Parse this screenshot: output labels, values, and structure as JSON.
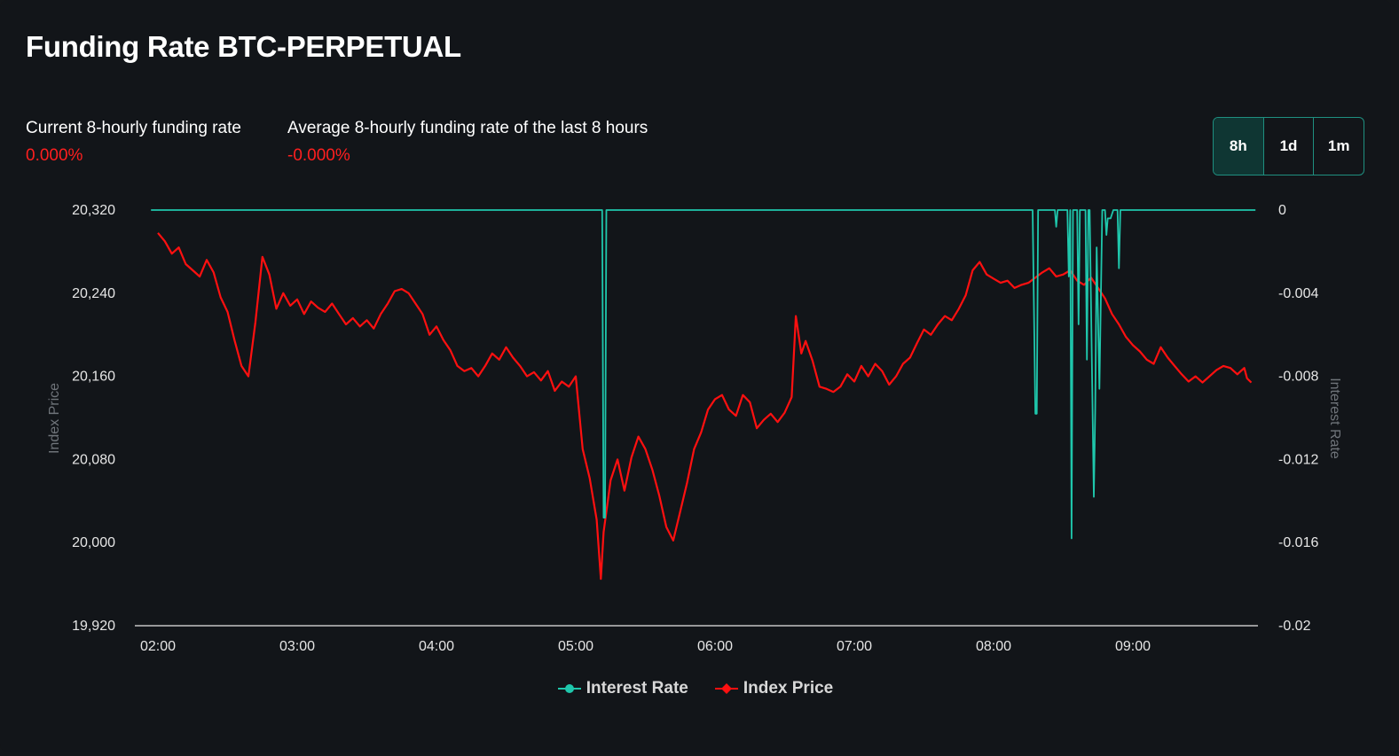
{
  "title": "Funding Rate BTC-PERPETUAL",
  "stats": [
    {
      "label": "Current 8-hourly funding rate",
      "value": "0.000%"
    },
    {
      "label": "Average 8-hourly funding rate of the last 8 hours",
      "value": "-0.000%"
    }
  ],
  "ranges": [
    {
      "label": "8h",
      "active": true
    },
    {
      "label": "1d",
      "active": false
    },
    {
      "label": "1m",
      "active": false
    }
  ],
  "legend": {
    "interest_label": "Interest Rate",
    "index_label": "Index Price"
  },
  "colors": {
    "interest": "#1fc7ac",
    "index": "#ff1010",
    "background": "#121519"
  },
  "chart_data": {
    "type": "line",
    "xlabel": "",
    "x_ticks": [
      "02:00",
      "03:00",
      "04:00",
      "05:00",
      "06:00",
      "07:00",
      "08:00",
      "09:00"
    ],
    "x_range_hours": [
      1.95,
      9.88
    ],
    "y_left": {
      "label": "Index Price",
      "ticks": [
        "20,320",
        "20,240",
        "20,160",
        "20,080",
        "20,000",
        "19,920"
      ],
      "ylim": [
        19920,
        20320
      ]
    },
    "y_right": {
      "label": "Interest Rate",
      "ticks": [
        "0",
        "-0.004",
        "-0.008",
        "-0.012",
        "-0.016",
        "-0.02"
      ],
      "ylim": [
        -0.02,
        0
      ]
    },
    "grid": false,
    "legend_position": "bottom",
    "series": [
      {
        "name": "Index Price",
        "axis": "left",
        "points": [
          [
            2.0,
            20298
          ],
          [
            2.05,
            20290
          ],
          [
            2.1,
            20278
          ],
          [
            2.15,
            20284
          ],
          [
            2.2,
            20268
          ],
          [
            2.25,
            20262
          ],
          [
            2.3,
            20256
          ],
          [
            2.35,
            20272
          ],
          [
            2.4,
            20260
          ],
          [
            2.45,
            20236
          ],
          [
            2.5,
            20222
          ],
          [
            2.55,
            20195
          ],
          [
            2.6,
            20170
          ],
          [
            2.65,
            20160
          ],
          [
            2.7,
            20212
          ],
          [
            2.75,
            20275
          ],
          [
            2.8,
            20258
          ],
          [
            2.85,
            20225
          ],
          [
            2.9,
            20240
          ],
          [
            2.95,
            20228
          ],
          [
            3.0,
            20234
          ],
          [
            3.05,
            20220
          ],
          [
            3.1,
            20232
          ],
          [
            3.15,
            20226
          ],
          [
            3.2,
            20222
          ],
          [
            3.25,
            20230
          ],
          [
            3.3,
            20220
          ],
          [
            3.35,
            20210
          ],
          [
            3.4,
            20216
          ],
          [
            3.45,
            20208
          ],
          [
            3.5,
            20214
          ],
          [
            3.55,
            20206
          ],
          [
            3.6,
            20220
          ],
          [
            3.65,
            20230
          ],
          [
            3.7,
            20242
          ],
          [
            3.75,
            20244
          ],
          [
            3.8,
            20240
          ],
          [
            3.85,
            20230
          ],
          [
            3.9,
            20220
          ],
          [
            3.95,
            20200
          ],
          [
            4.0,
            20208
          ],
          [
            4.05,
            20195
          ],
          [
            4.1,
            20185
          ],
          [
            4.15,
            20170
          ],
          [
            4.2,
            20165
          ],
          [
            4.25,
            20168
          ],
          [
            4.3,
            20160
          ],
          [
            4.35,
            20170
          ],
          [
            4.4,
            20182
          ],
          [
            4.45,
            20176
          ],
          [
            4.5,
            20188
          ],
          [
            4.55,
            20178
          ],
          [
            4.6,
            20170
          ],
          [
            4.65,
            20160
          ],
          [
            4.7,
            20164
          ],
          [
            4.75,
            20156
          ],
          [
            4.8,
            20165
          ],
          [
            4.85,
            20146
          ],
          [
            4.9,
            20155
          ],
          [
            4.95,
            20150
          ],
          [
            5.0,
            20160
          ],
          [
            5.05,
            20090
          ],
          [
            5.1,
            20062
          ],
          [
            5.15,
            20022
          ],
          [
            5.18,
            19965
          ],
          [
            5.2,
            20010
          ],
          [
            5.25,
            20060
          ],
          [
            5.3,
            20080
          ],
          [
            5.35,
            20050
          ],
          [
            5.4,
            20082
          ],
          [
            5.45,
            20102
          ],
          [
            5.5,
            20090
          ],
          [
            5.55,
            20070
          ],
          [
            5.6,
            20045
          ],
          [
            5.65,
            20015
          ],
          [
            5.7,
            20002
          ],
          [
            5.75,
            20030
          ],
          [
            5.8,
            20058
          ],
          [
            5.85,
            20090
          ],
          [
            5.9,
            20106
          ],
          [
            5.95,
            20128
          ],
          [
            6.0,
            20138
          ],
          [
            6.05,
            20142
          ],
          [
            6.1,
            20128
          ],
          [
            6.15,
            20122
          ],
          [
            6.2,
            20142
          ],
          [
            6.25,
            20135
          ],
          [
            6.3,
            20110
          ],
          [
            6.35,
            20118
          ],
          [
            6.4,
            20124
          ],
          [
            6.45,
            20116
          ],
          [
            6.5,
            20125
          ],
          [
            6.55,
            20140
          ],
          [
            6.58,
            20218
          ],
          [
            6.62,
            20182
          ],
          [
            6.65,
            20194
          ],
          [
            6.7,
            20175
          ],
          [
            6.75,
            20150
          ],
          [
            6.8,
            20148
          ],
          [
            6.85,
            20145
          ],
          [
            6.9,
            20150
          ],
          [
            6.95,
            20162
          ],
          [
            7.0,
            20155
          ],
          [
            7.05,
            20170
          ],
          [
            7.1,
            20160
          ],
          [
            7.15,
            20172
          ],
          [
            7.2,
            20165
          ],
          [
            7.25,
            20152
          ],
          [
            7.3,
            20160
          ],
          [
            7.35,
            20172
          ],
          [
            7.4,
            20178
          ],
          [
            7.45,
            20192
          ],
          [
            7.5,
            20205
          ],
          [
            7.55,
            20200
          ],
          [
            7.6,
            20210
          ],
          [
            7.65,
            20218
          ],
          [
            7.7,
            20214
          ],
          [
            7.75,
            20225
          ],
          [
            7.8,
            20238
          ],
          [
            7.85,
            20262
          ],
          [
            7.9,
            20270
          ],
          [
            7.95,
            20258
          ],
          [
            8.0,
            20254
          ],
          [
            8.05,
            20250
          ],
          [
            8.1,
            20252
          ],
          [
            8.15,
            20245
          ],
          [
            8.2,
            20248
          ],
          [
            8.25,
            20250
          ],
          [
            8.3,
            20255
          ],
          [
            8.35,
            20260
          ],
          [
            8.4,
            20264
          ],
          [
            8.45,
            20256
          ],
          [
            8.5,
            20258
          ],
          [
            8.55,
            20262
          ],
          [
            8.6,
            20252
          ],
          [
            8.65,
            20248
          ],
          [
            8.7,
            20255
          ],
          [
            8.75,
            20245
          ],
          [
            8.8,
            20235
          ],
          [
            8.85,
            20220
          ],
          [
            8.9,
            20210
          ],
          [
            8.95,
            20198
          ],
          [
            9.0,
            20190
          ],
          [
            9.05,
            20184
          ],
          [
            9.1,
            20176
          ],
          [
            9.15,
            20172
          ],
          [
            9.2,
            20188
          ],
          [
            9.25,
            20178
          ],
          [
            9.3,
            20170
          ],
          [
            9.35,
            20162
          ],
          [
            9.4,
            20155
          ],
          [
            9.45,
            20160
          ],
          [
            9.5,
            20154
          ],
          [
            9.55,
            20160
          ],
          [
            9.6,
            20166
          ],
          [
            9.65,
            20170
          ],
          [
            9.7,
            20168
          ],
          [
            9.75,
            20162
          ],
          [
            9.8,
            20168
          ],
          [
            9.82,
            20158
          ],
          [
            9.85,
            20154
          ]
        ]
      },
      {
        "name": "Interest Rate",
        "axis": "right",
        "points": [
          [
            1.95,
            0
          ],
          [
            5.19,
            0
          ],
          [
            5.2,
            -0.0148
          ],
          [
            5.21,
            -0.0148
          ],
          [
            5.22,
            0
          ],
          [
            8.28,
            0
          ],
          [
            8.3,
            -0.0098
          ],
          [
            8.31,
            -0.0098
          ],
          [
            8.32,
            0
          ],
          [
            8.44,
            0
          ],
          [
            8.45,
            -0.0008
          ],
          [
            8.46,
            0
          ],
          [
            8.53,
            0
          ],
          [
            8.54,
            -0.0032
          ],
          [
            8.55,
            0
          ],
          [
            8.56,
            -0.0158
          ],
          [
            8.57,
            0
          ],
          [
            8.6,
            0
          ],
          [
            8.61,
            -0.0055
          ],
          [
            8.62,
            0
          ],
          [
            8.66,
            0
          ],
          [
            8.67,
            -0.0072
          ],
          [
            8.68,
            0
          ],
          [
            8.69,
            0
          ],
          [
            8.72,
            -0.0138
          ],
          [
            8.73,
            -0.0095
          ],
          [
            8.74,
            -0.0018
          ],
          [
            8.76,
            -0.0086
          ],
          [
            8.78,
            0
          ],
          [
            8.8,
            0
          ],
          [
            8.81,
            -0.0012
          ],
          [
            8.82,
            -0.0004
          ],
          [
            8.84,
            -0.0004
          ],
          [
            8.86,
            0
          ],
          [
            8.89,
            0
          ],
          [
            8.9,
            -0.0028
          ],
          [
            8.91,
            0
          ],
          [
            9.88,
            0
          ]
        ]
      }
    ]
  }
}
